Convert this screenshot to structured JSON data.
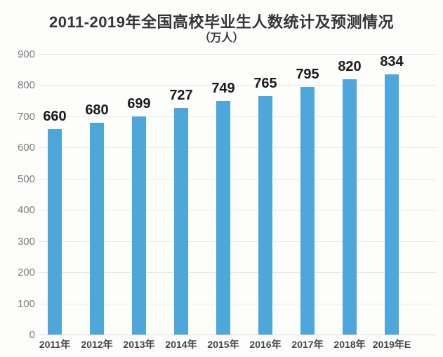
{
  "chart_data": {
    "type": "bar",
    "title": "2011-2019年全国高校毕业生人数统计及预测情况",
    "subtitle": "（万人）",
    "categories": [
      "2011年",
      "2012年",
      "2013年",
      "2014年",
      "2015年",
      "2016年",
      "2017年",
      "2018年",
      "2019年E"
    ],
    "values": [
      660,
      680,
      699,
      727,
      749,
      765,
      795,
      820,
      834
    ],
    "ylabel": "",
    "xlabel": "",
    "ylim": [
      0,
      900
    ],
    "yticks": [
      0,
      100,
      200,
      300,
      400,
      500,
      600,
      700,
      800,
      900
    ],
    "grid": true,
    "legend": "none",
    "bar_color": "#4da7db",
    "title_color": "#353535",
    "value_label_color": "#1b1b1b",
    "axis_label_color": "#7d7d7d",
    "xtick_color": "#45454e",
    "gridline_color": "#e9e9e9",
    "background_color": "#fdfdfc"
  }
}
